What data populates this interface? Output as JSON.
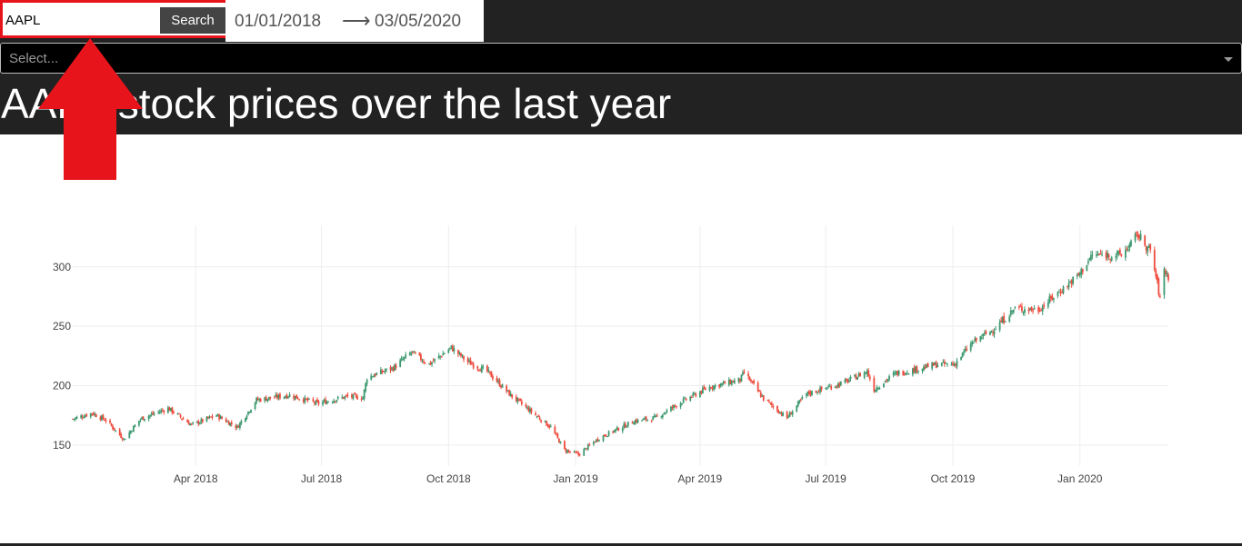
{
  "search": {
    "value": "AAPL",
    "button_label": "Search"
  },
  "date_range": {
    "start": "01/01/2018",
    "arrow": "⟶",
    "end": "03/05/2020"
  },
  "dropdown": {
    "placeholder": "Select..."
  },
  "page": {
    "title": "AAPL stock prices over the last year"
  },
  "annotation": {
    "icon": "arrow-up-icon",
    "color": "#e8141c"
  },
  "colors": {
    "increasing": "#3d9970",
    "decreasing": "#ef4b3d",
    "header_bg": "#222222"
  },
  "chart_data": {
    "type": "candlestick",
    "x_range": [
      "2018-01-02",
      "2020-03-05"
    ],
    "y_range": [
      140,
      335
    ],
    "y_ticks": [
      150,
      200,
      250,
      300
    ],
    "y_tick_labels": [
      "150",
      "200",
      "250",
      "300"
    ],
    "x_ticks": [
      "2018-04-01",
      "2018-07-01",
      "2018-10-01",
      "2019-01-01",
      "2019-04-01",
      "2019-07-01",
      "2019-10-01",
      "2020-01-01"
    ],
    "x_tick_labels": [
      "Apr 2018",
      "Jul 2018",
      "Oct 2018",
      "Jan 2019",
      "Apr 2019",
      "Jul 2019",
      "Oct 2019",
      "Jan 2020"
    ],
    "grid": true,
    "approx_close_path": [
      [
        "2018-01-02",
        172
      ],
      [
        "2018-01-16",
        177
      ],
      [
        "2018-01-26",
        171
      ],
      [
        "2018-02-08",
        155
      ],
      [
        "2018-02-20",
        172
      ],
      [
        "2018-03-12",
        181
      ],
      [
        "2018-03-29",
        167
      ],
      [
        "2018-04-16",
        175
      ],
      [
        "2018-05-01",
        165
      ],
      [
        "2018-05-15",
        188
      ],
      [
        "2018-06-08",
        192
      ],
      [
        "2018-06-28",
        185
      ],
      [
        "2018-07-20",
        191
      ],
      [
        "2018-07-31",
        190
      ],
      [
        "2018-08-03",
        207
      ],
      [
        "2018-08-22",
        215
      ],
      [
        "2018-09-04",
        228
      ],
      [
        "2018-09-17",
        218
      ],
      [
        "2018-10-03",
        232
      ],
      [
        "2018-10-15",
        220
      ],
      [
        "2018-10-29",
        212
      ],
      [
        "2018-11-15",
        192
      ],
      [
        "2018-11-30",
        178
      ],
      [
        "2018-12-14",
        165
      ],
      [
        "2018-12-24",
        146
      ],
      [
        "2019-01-03",
        142
      ],
      [
        "2019-01-18",
        156
      ],
      [
        "2019-02-12",
        170
      ],
      [
        "2019-02-28",
        173
      ],
      [
        "2019-03-18",
        186
      ],
      [
        "2019-04-08",
        199
      ],
      [
        "2019-04-30",
        205
      ],
      [
        "2019-05-03",
        211
      ],
      [
        "2019-05-17",
        189
      ],
      [
        "2019-06-03",
        173
      ],
      [
        "2019-06-17",
        193
      ],
      [
        "2019-07-15",
        203
      ],
      [
        "2019-07-31",
        212
      ],
      [
        "2019-08-05",
        197
      ],
      [
        "2019-08-20",
        210
      ],
      [
        "2019-09-05",
        214
      ],
      [
        "2019-09-20",
        218
      ],
      [
        "2019-10-02",
        218
      ],
      [
        "2019-10-15",
        236
      ],
      [
        "2019-10-31",
        248
      ],
      [
        "2019-11-15",
        265
      ],
      [
        "2019-12-02",
        264
      ],
      [
        "2019-12-13",
        275
      ],
      [
        "2019-12-31",
        293
      ],
      [
        "2020-01-10",
        310
      ],
      [
        "2020-01-31",
        310
      ],
      [
        "2020-02-12",
        327
      ],
      [
        "2020-02-21",
        313
      ],
      [
        "2020-02-24",
        298
      ],
      [
        "2020-02-28",
        273
      ],
      [
        "2020-03-02",
        298
      ],
      [
        "2020-03-05",
        292
      ]
    ]
  }
}
